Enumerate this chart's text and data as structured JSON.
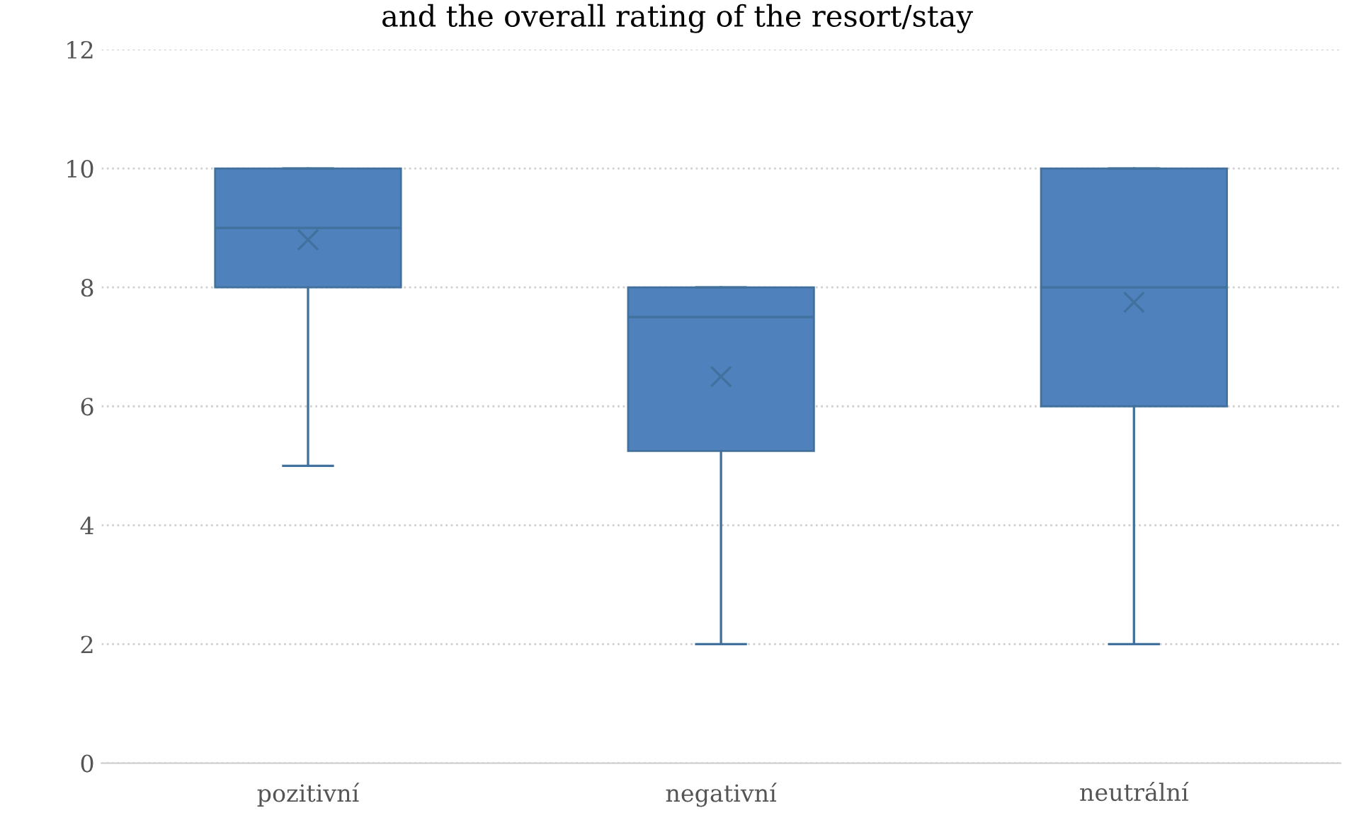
{
  "chart_data": {
    "type": "box",
    "title": "and the overall rating of the resort/stay",
    "categories": [
      "pozitivní",
      "negativní",
      "neutrální"
    ],
    "boxes": [
      {
        "low": 5,
        "q1": 8,
        "median": 9,
        "q3": 10,
        "high": 10,
        "mean": 8.8
      },
      {
        "low": 2,
        "q1": 5.25,
        "median": 7.5,
        "q3": 8,
        "high": 8,
        "mean": 6.5
      },
      {
        "low": 2,
        "q1": 6,
        "median": 8,
        "q3": 10,
        "high": 10,
        "mean": 7.75
      }
    ],
    "color": "#4f81bd",
    "ylim": [
      0,
      12
    ],
    "yticks": [
      0,
      2,
      4,
      6,
      8,
      10,
      12
    ],
    "grid": "y",
    "marker": "cross"
  }
}
